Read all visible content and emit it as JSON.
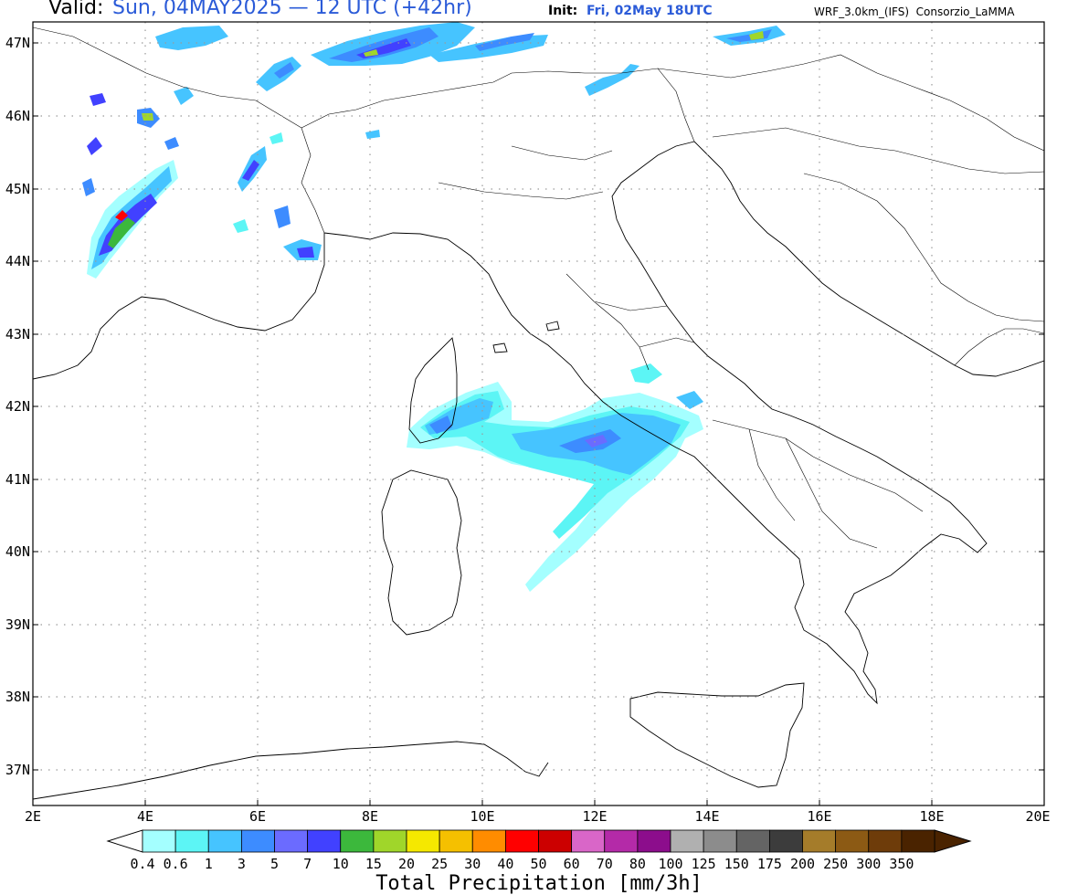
{
  "header": {
    "valid_label": "Valid:",
    "valid_value": "Sun, 04MAY2025 — 12 UTC (+42hr)",
    "init_label": "Init:",
    "init_value": "Fri, 02May 18UTC",
    "source": "WRF_3.0km_(IFS)  Consorzio_LaMMA"
  },
  "map": {
    "lat_labels": [
      "47N",
      "46N",
      "45N",
      "44N",
      "43N",
      "42N",
      "41N",
      "40N",
      "39N",
      "38N",
      "37N"
    ],
    "lon_labels": [
      "2E",
      "4E",
      "6E",
      "8E",
      "10E",
      "12E",
      "14E",
      "16E",
      "18E",
      "20E"
    ],
    "grid": "dotted",
    "colors": {
      "coastline": "#000000",
      "frame": "#000000",
      "grid": "#9a9a9a"
    }
  },
  "colorbar": {
    "title": "Total Precipitation [mm/3h]",
    "labels": [
      "0.4",
      "0.6",
      "1",
      "3",
      "5",
      "7",
      "10",
      "15",
      "20",
      "25",
      "30",
      "40",
      "50",
      "60",
      "70",
      "80",
      "100",
      "125",
      "150",
      "175",
      "200",
      "250",
      "300",
      "350"
    ],
    "colors": [
      "#a4ffff",
      "#5cf5f5",
      "#46c4ff",
      "#3d8cff",
      "#6b6bff",
      "#4141ff",
      "#3cb83c",
      "#a0d62a",
      "#f5e800",
      "#f5c000",
      "#ff8c00",
      "#ff0000",
      "#cc0000",
      "#d966c8",
      "#b42aa8",
      "#8c0d8c",
      "#b0b0b0",
      "#8c8c8c",
      "#646464",
      "#3c3c3c",
      "#a57c2a",
      "#8c5a14",
      "#6e3c0a",
      "#4a2300"
    ]
  }
}
